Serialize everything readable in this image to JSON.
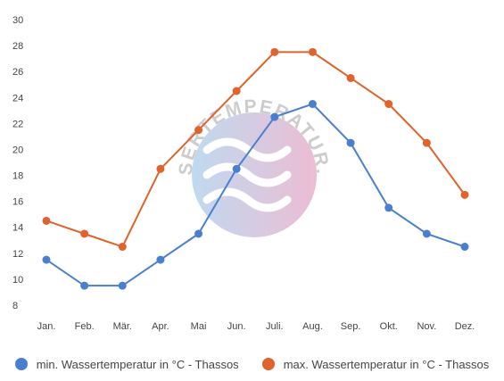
{
  "chart_data": {
    "type": "line",
    "categories": [
      "Jan.",
      "Feb.",
      "Mär.",
      "Apr.",
      "Mai",
      "Jun.",
      "Juli.",
      "Aug.",
      "Sep.",
      "Okt.",
      "Nov.",
      "Dez."
    ],
    "series": [
      {
        "name": "min. Wassertemperatur in °C - Thassos",
        "color": "#4a7fcf",
        "values": [
          11.5,
          9.5,
          9.5,
          11.5,
          13.5,
          18.5,
          22.5,
          23.5,
          20.5,
          15.5,
          13.5,
          12.5
        ]
      },
      {
        "name": "max. Wassertemperatur in °C - Thassos",
        "color": "#e0622c",
        "values": [
          14.5,
          13.5,
          12.5,
          18.5,
          21.5,
          24.5,
          27.5,
          27.5,
          25.5,
          23.5,
          20.5,
          16.5
        ]
      }
    ],
    "yticks": [
      8,
      10,
      12,
      14,
      16,
      18,
      20,
      22,
      24,
      26,
      28,
      30
    ],
    "ylim": [
      8,
      30
    ],
    "grid": false,
    "legend": "bottom",
    "title": "",
    "xlabel": "",
    "ylabel": ""
  },
  "watermark": {
    "text": "WASSERTEMPERATUR.ORG"
  }
}
